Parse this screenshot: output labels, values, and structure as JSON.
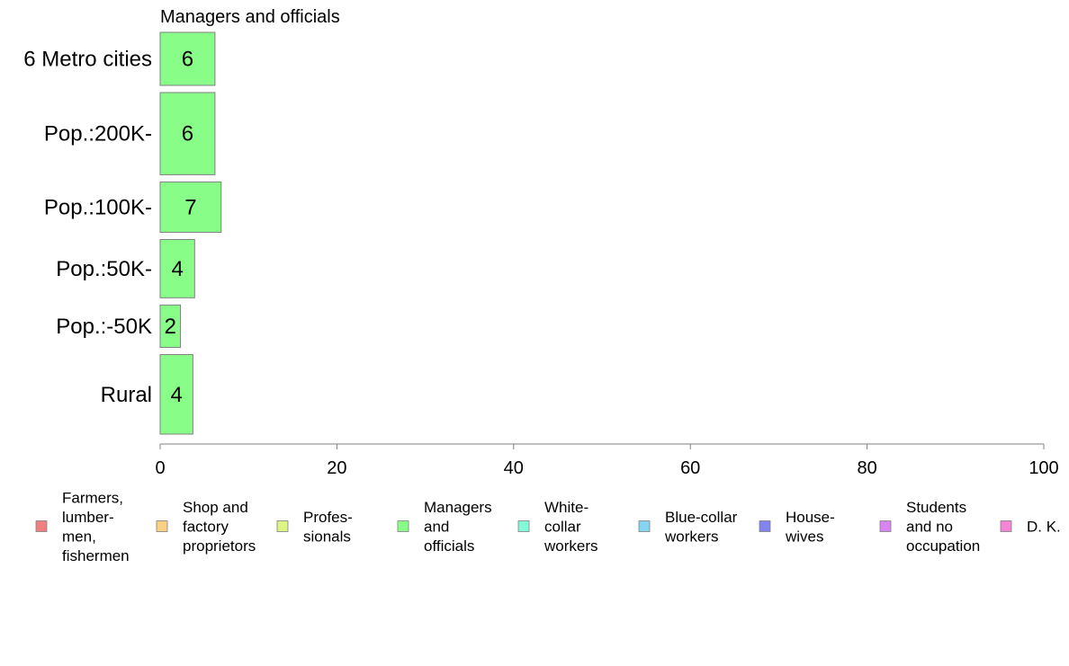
{
  "chart_data": {
    "type": "bar",
    "orientation": "horizontal",
    "title": "Managers and officials",
    "categories": [
      "6 Metro cities",
      "Pop.:200K-",
      "Pop.:100K-",
      "Pop.:50K-",
      "Pop.:-50K",
      "Rural"
    ],
    "bar_weights": [
      1.0,
      1.55,
      0.95,
      1.1,
      0.8,
      1.5
    ],
    "values": [
      6.2,
      6.2,
      6.9,
      3.9,
      2.3,
      3.7
    ],
    "data_labels": [
      "6",
      "6",
      "7",
      "4",
      "2",
      "4"
    ],
    "bar_color": "#88fd88",
    "bar_stroke": "#808080",
    "xlim": [
      0,
      100
    ],
    "xticks": [
      "0",
      "20",
      "40",
      "60",
      "80",
      "100"
    ],
    "xlabel": "",
    "ylabel": "",
    "grid": false,
    "legend_position": "bottom",
    "legend": [
      {
        "lines": [
          "Farmers,",
          "lumber-",
          "men,",
          "fishermen"
        ],
        "color": "#f08080"
      },
      {
        "lines": [
          "Shop and",
          "factory",
          "proprietors"
        ],
        "color": "#f8d184"
      },
      {
        "lines": [
          "Profes-",
          "sionals"
        ],
        "color": "#dcf584"
      },
      {
        "lines": [
          "Managers",
          "and",
          "officials"
        ],
        "color": "#88fd88"
      },
      {
        "lines": [
          "White-",
          "collar",
          "workers"
        ],
        "color": "#84f9d8"
      },
      {
        "lines": [
          "Blue-collar",
          "workers"
        ],
        "color": "#84d4f2"
      },
      {
        "lines": [
          "House-",
          "wives"
        ],
        "color": "#8484f0"
      },
      {
        "lines": [
          "Students",
          "and no",
          "occupation"
        ],
        "color": "#d884f2"
      },
      {
        "lines": [
          "D. K."
        ],
        "color": "#f484d4"
      }
    ]
  }
}
